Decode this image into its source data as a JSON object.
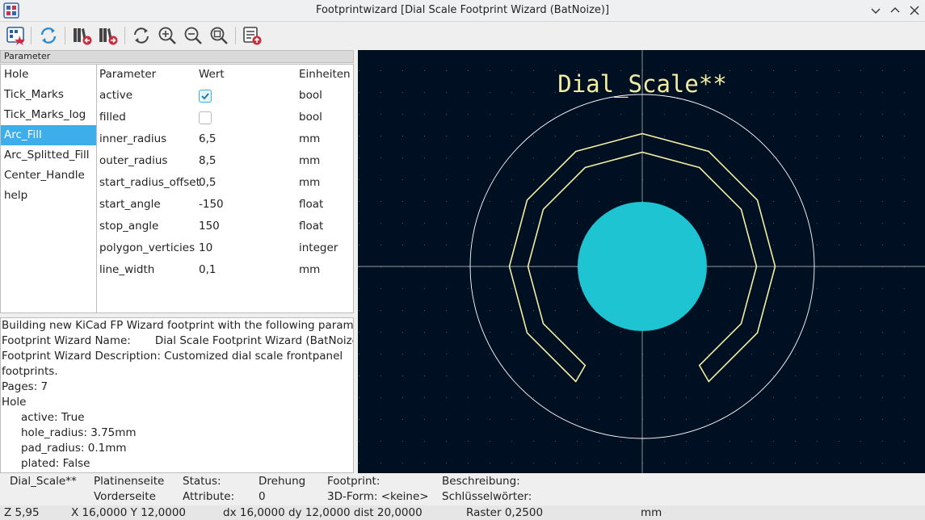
{
  "window": {
    "title": "Footprintwizard [Dial Scale Footprint Wizard (BatNoize)]"
  },
  "toolbar": {
    "buttons": [
      "select-wizard-icon",
      "refresh-icon",
      "previous-page-icon",
      "next-page-icon",
      "redraw-icon",
      "zoom-in-icon",
      "zoom-out-icon",
      "zoom-fit-icon",
      "export-footprint-icon"
    ]
  },
  "params_header": "Parameter",
  "pages": [
    "Hole",
    "Tick_Marks",
    "Tick_Marks_log",
    "Arc_Fill",
    "Arc_Splitted_Fill",
    "Center_Handle",
    "help"
  ],
  "selected_page": "Arc_Fill",
  "grid": {
    "headers": {
      "name": "Parameter",
      "value": "Wert",
      "unit": "Einheiten"
    },
    "rows": [
      {
        "name": "active",
        "checked": true,
        "unit": "bool"
      },
      {
        "name": "filled",
        "checked": false,
        "unit": "bool"
      },
      {
        "name": "inner_radius",
        "value": "6,5",
        "unit": "mm"
      },
      {
        "name": "outer_radius",
        "value": "8,5",
        "unit": "mm"
      },
      {
        "name": "start_radius_offset",
        "value": "0,5",
        "unit": "mm"
      },
      {
        "name": "start_angle",
        "value": "-150",
        "unit": "float"
      },
      {
        "name": "stop_angle",
        "value": "150",
        "unit": "float"
      },
      {
        "name": "polygon_verticies",
        "value": "10",
        "unit": "integer"
      },
      {
        "name": "line_width",
        "value": "0,1",
        "unit": "mm"
      }
    ]
  },
  "messages": [
    {
      "text": "Building new KiCad FP Wizard footprint with the following parameters:",
      "indent": false
    },
    {
      "text": "Footprint Wizard Name:       Dial Scale Footprint Wizard (BatNoize)",
      "indent": false
    },
    {
      "text": "Footprint Wizard Description: Customized dial scale frontpanel",
      "indent": false
    },
    {
      "text": "footprints.",
      "indent": false
    },
    {
      "text": "Pages: 7",
      "indent": false
    },
    {
      "text": "Hole",
      "indent": false
    },
    {
      "text": "active: True",
      "indent": true
    },
    {
      "text": "hole_radius: 3.75mm",
      "indent": true
    },
    {
      "text": "pad_radius: 0.1mm",
      "indent": true
    },
    {
      "text": "plated: False",
      "indent": true
    }
  ],
  "canvas": {
    "reference_text": "Dial_Scale**",
    "colors": {
      "background": "#001023",
      "silkscreen": "#f2eda1",
      "pad": "#1ec4d2",
      "courtyard": "#ffffff",
      "grid": "#4a5a6a"
    }
  },
  "status": {
    "footprint_name": "Dial_Scale**",
    "side_label": "Platinenseite",
    "side_value": "Vorderseite",
    "status_label": "Status:",
    "attrs_label": "Attribute:",
    "rotation_label": "Drehung",
    "rotation_value": "0",
    "footprint_label": "Footprint:",
    "model_label": "3D-Form: <keine>",
    "description_label": "Beschreibung:",
    "keywords_label": "Schlüsselwörter:"
  },
  "coords": {
    "zoom": "Z 5,95",
    "xy": "X 16,0000  Y 12,0000",
    "delta": "dx 16,0000  dy 12,0000  dist 20,0000",
    "grid": "Raster 0,2500",
    "units": "mm"
  }
}
